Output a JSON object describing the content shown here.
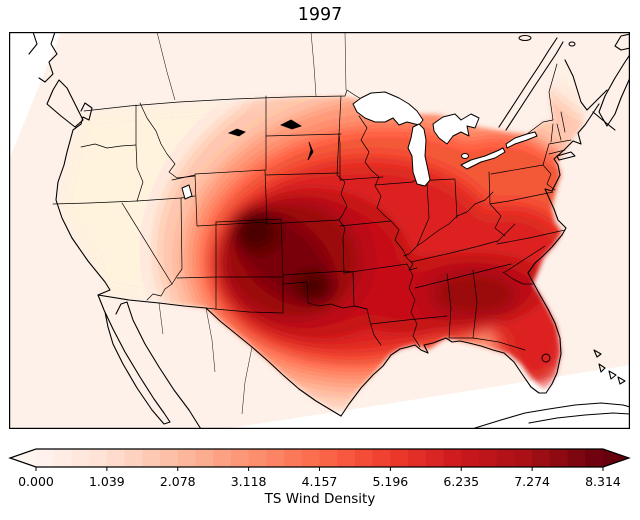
{
  "title": "1997",
  "chart_data": {
    "type": "heatmap",
    "title": "1997",
    "xlabel": "",
    "ylabel": "",
    "map_region": "Continental United States with state boundaries, southern Canada, northern Mexico, Cuba (Lambert conformal style basemap)",
    "field_name": "TS Wind Density",
    "grid_visible": false,
    "legend_position": "bottom colorbar",
    "colorbar": {
      "label": "TS Wind Density",
      "ticks": [
        "0.000",
        "1.039",
        "2.078",
        "3.118",
        "4.157",
        "5.196",
        "6.235",
        "7.274",
        "8.314"
      ],
      "vmin": 0.0,
      "vmax": 8.314,
      "n_segments": 32,
      "extend": "both",
      "colormap_name": "Reds",
      "colormap_stops": [
        "#fff5f0",
        "#fee0d2",
        "#fcbba1",
        "#fc9272",
        "#fb6a4a",
        "#ef3b2c",
        "#cb181d",
        "#a50f15",
        "#67000d"
      ]
    },
    "field_summary": {
      "primary_maximum": {
        "location": "eastern Colorado / western Kansas / Oklahoma panhandle",
        "value": 8.3
      },
      "secondary_maximum": {
        "location": "north-central Texas near Red River",
        "value": 7.8
      },
      "tertiary_maximum": {
        "location": "central Alabama / Georgia",
        "value": 6.3
      },
      "low_regions": [
        {
          "location": "Pacific coast states",
          "value": 0.4
        },
        {
          "location": "northern Maine",
          "value": 0.3
        },
        {
          "location": "outside United States (masked)",
          "value": 0
        }
      ],
      "mid_values": [
        {
          "location": "Midwest (Illinois / Indiana / Ohio)",
          "value": 4.5
        },
        {
          "location": "Gulf coast Louisiana / Mississippi",
          "value": 5.5
        },
        {
          "location": "Atlantic coast Virginia / Carolinas",
          "value": 4.8
        },
        {
          "location": "Florida peninsula",
          "value": 4.0
        },
        {
          "location": "northern plains Montana / North Dakota",
          "value": 1.5
        }
      ]
    }
  },
  "colors": {
    "background": "#ffffff",
    "data_region_tint": "#fdf1ea",
    "frame": "#000000",
    "outline": "#000000",
    "heat_l0": "#feeadd",
    "heat_l1": "#fcc3aa",
    "heat_l2": "#fc9576",
    "heat_l3": "#f4593c",
    "heat_l4": "#dd2a24",
    "heat_l5": "#c0151b",
    "heat_l6": "#9c0d14",
    "heat_l7": "#7a040c",
    "heat_l8": "#560006",
    "heat_l9": "#430004"
  }
}
